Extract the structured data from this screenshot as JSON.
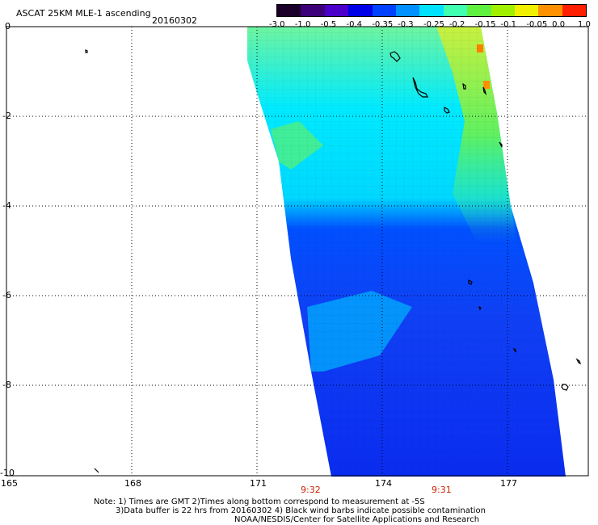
{
  "header": {
    "title": "ASCAT 25KM MLE-1 ascending",
    "date": "20160302"
  },
  "colorbar": {
    "labels": [
      "-3.0",
      "-1.0",
      "-0.5",
      "-0.4",
      "-0.35",
      "-0.3",
      "-0.25",
      "-0.2",
      "-0.15",
      "-0.1",
      "-0.05",
      "0.0",
      "1.0"
    ],
    "colors": [
      "#1a0028",
      "#3c0078",
      "#4a00c8",
      "#0000e6",
      "#0040ff",
      "#0090ff",
      "#00e0ff",
      "#40ffb0",
      "#60f040",
      "#a0f000",
      "#f0f000",
      "#ff9000",
      "#ff2000"
    ]
  },
  "axes": {
    "x_ticks": [
      "165",
      "168",
      "171",
      "174",
      "177"
    ],
    "y_ticks": [
      "0",
      "-2",
      "-4",
      "-6",
      "-8",
      "-10"
    ]
  },
  "times": [
    "9:32",
    "9:31"
  ],
  "footer": {
    "line1": "Note: 1) Times are GMT 2)Times along bottom correspond to measurement at -5S",
    "line2": "3)Data buffer is 22 hrs from 20160302 4) Black wind barbs indicate possible contamination",
    "line3": "NOAA/NESDIS/Center for Satellite Applications and Research"
  },
  "swath_colors": {
    "north": "#7ef5b8",
    "mid": "#00e4ff",
    "south": "#0a2cf0",
    "east_high": "#a8f020",
    "hotspot": "#ff8000"
  }
}
